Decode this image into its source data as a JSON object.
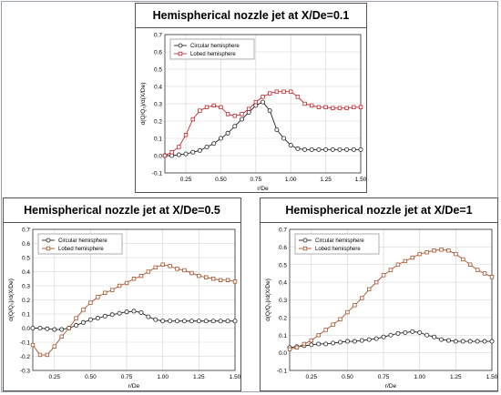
{
  "chart_data": [
    {
      "type": "line",
      "title": "Hemispherical nozzle jet at X/De=0.1",
      "xlabel": "r/De",
      "ylabel": "d(Q/Q₀)/d(X/De)",
      "xlim": [
        0.1,
        1.5
      ],
      "ylim": [
        -0.1,
        0.7
      ],
      "xticks": [
        "0.25",
        "0.50",
        "0.75",
        "1.00",
        "1.25",
        "1.50"
      ],
      "yticks": [
        "-0.1",
        "0.0",
        "0.1",
        "0.2",
        "0.3",
        "0.4",
        "0.5",
        "0.6",
        "0.7"
      ],
      "grid": true,
      "legend_position": "top-left",
      "series": [
        {
          "name": "Circular hemisphere",
          "color": "#222222",
          "marker": "circle",
          "x": [
            0.1,
            0.15,
            0.2,
            0.25,
            0.3,
            0.35,
            0.4,
            0.45,
            0.5,
            0.55,
            0.6,
            0.65,
            0.7,
            0.75,
            0.8,
            0.85,
            0.9,
            0.95,
            1.0,
            1.05,
            1.1,
            1.15,
            1.2,
            1.25,
            1.3,
            1.35,
            1.4,
            1.45,
            1.5
          ],
          "y": [
            0.0,
            0.0,
            0.005,
            0.01,
            0.02,
            0.03,
            0.05,
            0.07,
            0.1,
            0.13,
            0.17,
            0.21,
            0.25,
            0.29,
            0.31,
            0.26,
            0.15,
            0.1,
            0.06,
            0.04,
            0.035,
            0.035,
            0.035,
            0.035,
            0.035,
            0.035,
            0.035,
            0.035,
            0.035
          ]
        },
        {
          "name": "Lobed hemisphere",
          "color": "#c0282d",
          "marker": "square",
          "x": [
            0.1,
            0.15,
            0.2,
            0.25,
            0.3,
            0.35,
            0.4,
            0.45,
            0.5,
            0.55,
            0.6,
            0.65,
            0.7,
            0.75,
            0.8,
            0.85,
            0.9,
            0.95,
            1.0,
            1.05,
            1.1,
            1.15,
            1.2,
            1.25,
            1.3,
            1.35,
            1.4,
            1.45,
            1.5
          ],
          "y": [
            0.0,
            0.02,
            0.05,
            0.12,
            0.21,
            0.26,
            0.28,
            0.29,
            0.28,
            0.24,
            0.23,
            0.24,
            0.27,
            0.31,
            0.34,
            0.36,
            0.37,
            0.37,
            0.37,
            0.34,
            0.3,
            0.29,
            0.28,
            0.28,
            0.275,
            0.275,
            0.275,
            0.28,
            0.28
          ]
        }
      ]
    },
    {
      "type": "line",
      "title": "Hemispherical nozzle jet at X/De=0.5",
      "xlabel": "r/De",
      "ylabel": "d(Q/Q₀)/d(X/De)",
      "xlim": [
        0.1,
        1.5
      ],
      "ylim": [
        -0.3,
        0.7
      ],
      "xticks": [
        "0.25",
        "0.50",
        "0.75",
        "1.00",
        "1.25",
        "1.50"
      ],
      "yticks": [
        "-0.3",
        "-0.2",
        "-0.1",
        "0.0",
        "0.1",
        "0.2",
        "0.3",
        "0.4",
        "0.5",
        "0.6",
        "0.7"
      ],
      "grid": true,
      "legend_position": "top-left",
      "series": [
        {
          "name": "Circular hemisphere",
          "color": "#222222",
          "marker": "circle",
          "x": [
            0.1,
            0.15,
            0.2,
            0.25,
            0.3,
            0.35,
            0.4,
            0.45,
            0.5,
            0.55,
            0.6,
            0.65,
            0.7,
            0.75,
            0.8,
            0.85,
            0.9,
            0.95,
            1.0,
            1.05,
            1.1,
            1.15,
            1.2,
            1.25,
            1.3,
            1.35,
            1.4,
            1.45,
            1.5
          ],
          "y": [
            0.0,
            0.0,
            -0.005,
            -0.01,
            -0.01,
            0.0,
            0.02,
            0.04,
            0.06,
            0.07,
            0.085,
            0.095,
            0.105,
            0.115,
            0.12,
            0.11,
            0.08,
            0.06,
            0.05,
            0.05,
            0.05,
            0.05,
            0.05,
            0.05,
            0.05,
            0.05,
            0.05,
            0.05,
            0.05
          ]
        },
        {
          "name": "Lobed hemisphere",
          "color": "#a6532a",
          "marker": "square",
          "x": [
            0.1,
            0.15,
            0.2,
            0.25,
            0.3,
            0.35,
            0.4,
            0.45,
            0.5,
            0.55,
            0.6,
            0.65,
            0.7,
            0.75,
            0.8,
            0.85,
            0.9,
            0.95,
            1.0,
            1.05,
            1.1,
            1.15,
            1.2,
            1.25,
            1.3,
            1.35,
            1.4,
            1.45,
            1.5
          ],
          "y": [
            -0.12,
            -0.19,
            -0.19,
            -0.13,
            -0.06,
            0.0,
            0.07,
            0.13,
            0.18,
            0.22,
            0.25,
            0.27,
            0.3,
            0.32,
            0.35,
            0.37,
            0.4,
            0.43,
            0.45,
            0.44,
            0.42,
            0.41,
            0.39,
            0.37,
            0.36,
            0.35,
            0.34,
            0.34,
            0.33
          ]
        }
      ]
    },
    {
      "type": "line",
      "title": "Hemispherical nozzle jet at X/De=1",
      "xlabel": "r/De",
      "ylabel": "d(Q/Q₀)/d(X/De)",
      "xlim": [
        0.1,
        1.5
      ],
      "ylim": [
        -0.1,
        0.7
      ],
      "xticks": [
        "0.25",
        "0.50",
        "0.75",
        "1.00",
        "1.25",
        "1.50"
      ],
      "yticks": [
        "-0.1",
        "0.0",
        "0.1",
        "0.2",
        "0.3",
        "0.4",
        "0.5",
        "0.6",
        "0.7"
      ],
      "grid": true,
      "legend_position": "top-left",
      "series": [
        {
          "name": "Circular hemisphere",
          "color": "#222222",
          "marker": "circle",
          "x": [
            0.1,
            0.15,
            0.2,
            0.25,
            0.3,
            0.35,
            0.4,
            0.45,
            0.5,
            0.55,
            0.6,
            0.65,
            0.7,
            0.75,
            0.8,
            0.85,
            0.9,
            0.95,
            1.0,
            1.05,
            1.1,
            1.15,
            1.2,
            1.25,
            1.3,
            1.35,
            1.4,
            1.45,
            1.5
          ],
          "y": [
            0.03,
            0.035,
            0.04,
            0.045,
            0.05,
            0.05,
            0.055,
            0.06,
            0.065,
            0.065,
            0.07,
            0.075,
            0.08,
            0.09,
            0.1,
            0.11,
            0.115,
            0.12,
            0.115,
            0.1,
            0.09,
            0.075,
            0.07,
            0.065,
            0.065,
            0.065,
            0.065,
            0.065,
            0.065
          ]
        },
        {
          "name": "Lobed hemisphere",
          "color": "#a6532a",
          "marker": "square",
          "x": [
            0.1,
            0.15,
            0.2,
            0.25,
            0.3,
            0.35,
            0.4,
            0.45,
            0.5,
            0.55,
            0.6,
            0.65,
            0.7,
            0.75,
            0.8,
            0.85,
            0.9,
            0.95,
            1.0,
            1.05,
            1.1,
            1.15,
            1.2,
            1.25,
            1.3,
            1.35,
            1.4,
            1.45,
            1.5
          ],
          "y": [
            0.02,
            0.03,
            0.05,
            0.07,
            0.1,
            0.13,
            0.16,
            0.19,
            0.23,
            0.27,
            0.31,
            0.36,
            0.4,
            0.44,
            0.47,
            0.5,
            0.52,
            0.54,
            0.56,
            0.57,
            0.58,
            0.585,
            0.58,
            0.56,
            0.53,
            0.5,
            0.47,
            0.45,
            0.43
          ]
        }
      ]
    }
  ]
}
